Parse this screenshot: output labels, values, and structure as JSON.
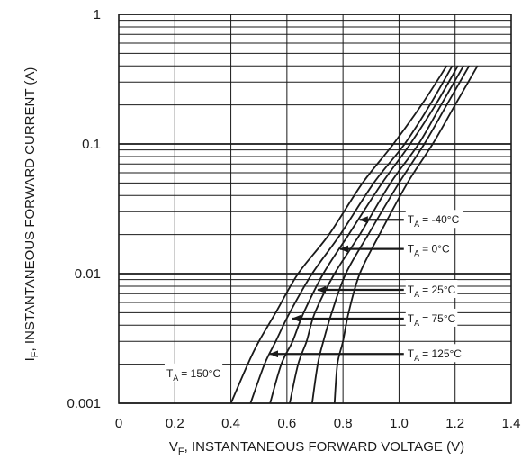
{
  "chart_data": {
    "type": "line",
    "title": "",
    "xlabel": {
      "prefix": "V",
      "sub": "F",
      "suffix": ", INSTANTANEOUS FORWARD VOLTAGE (V)"
    },
    "ylabel": {
      "prefix": "I",
      "sub": "F",
      "suffix": ", INSTANTANEOUS FORWARD CURRENT (A)"
    },
    "xlim": [
      0,
      1.4
    ],
    "ylim": [
      0.001,
      1
    ],
    "yscale": "log",
    "grid": true,
    "x_ticks": [
      0,
      0.2,
      0.4,
      0.6,
      0.8,
      1.0,
      1.2,
      1.4
    ],
    "x_tick_labels": [
      "0",
      "0.2",
      "0.4",
      "0.6",
      "0.8",
      "1.0",
      "1.2",
      "1.4"
    ],
    "y_ticks": [
      0.001,
      0.01,
      0.1,
      1
    ],
    "y_tick_labels": [
      "0.001",
      "0.01",
      "0.1",
      "1"
    ],
    "series": [
      {
        "name": "TA = 150°C",
        "label_text": "= 150°C",
        "points": [
          [
            0.4,
            0.001
          ],
          [
            0.46,
            0.002
          ],
          [
            0.5,
            0.003
          ],
          [
            0.56,
            0.005
          ],
          [
            0.64,
            0.01
          ],
          [
            0.75,
            0.02
          ],
          [
            0.87,
            0.05
          ],
          [
            0.98,
            0.1
          ],
          [
            1.08,
            0.2
          ],
          [
            1.17,
            0.4
          ]
        ]
      },
      {
        "name": "TA = 125°C",
        "label_text": "= 125°C",
        "points": [
          [
            0.47,
            0.001
          ],
          [
            0.52,
            0.002
          ],
          [
            0.56,
            0.003
          ],
          [
            0.61,
            0.005
          ],
          [
            0.69,
            0.01
          ],
          [
            0.79,
            0.02
          ],
          [
            0.91,
            0.05
          ],
          [
            1.02,
            0.1
          ],
          [
            1.11,
            0.2
          ],
          [
            1.19,
            0.4
          ]
        ]
      },
      {
        "name": "TA = 75°C",
        "label_text": "= 75°C",
        "points": [
          [
            0.54,
            0.001
          ],
          [
            0.58,
            0.002
          ],
          [
            0.62,
            0.003
          ],
          [
            0.66,
            0.005
          ],
          [
            0.73,
            0.01
          ],
          [
            0.82,
            0.02
          ],
          [
            0.94,
            0.05
          ],
          [
            1.04,
            0.1
          ],
          [
            1.13,
            0.2
          ],
          [
            1.21,
            0.4
          ]
        ]
      },
      {
        "name": "TA = 25°C",
        "label_text": "= 25°C",
        "points": [
          [
            0.61,
            0.001
          ],
          [
            0.64,
            0.002
          ],
          [
            0.67,
            0.003
          ],
          [
            0.7,
            0.005
          ],
          [
            0.77,
            0.01
          ],
          [
            0.86,
            0.02
          ],
          [
            0.97,
            0.05
          ],
          [
            1.07,
            0.1
          ],
          [
            1.15,
            0.2
          ],
          [
            1.23,
            0.4
          ]
        ]
      },
      {
        "name": "TA = 0°C",
        "label_text": "= 0°C",
        "points": [
          [
            0.69,
            0.001
          ],
          [
            0.71,
            0.002
          ],
          [
            0.73,
            0.003
          ],
          [
            0.76,
            0.005
          ],
          [
            0.81,
            0.01
          ],
          [
            0.89,
            0.02
          ],
          [
            1.0,
            0.05
          ],
          [
            1.09,
            0.1
          ],
          [
            1.17,
            0.2
          ],
          [
            1.25,
            0.4
          ]
        ]
      },
      {
        "name": "TA = -40°C",
        "label_text": "= -40°C",
        "points": [
          [
            0.77,
            0.001
          ],
          [
            0.78,
            0.002
          ],
          [
            0.8,
            0.003
          ],
          [
            0.82,
            0.005
          ],
          [
            0.86,
            0.01
          ],
          [
            0.93,
            0.02
          ],
          [
            1.03,
            0.05
          ],
          [
            1.12,
            0.1
          ],
          [
            1.2,
            0.2
          ],
          [
            1.28,
            0.4
          ]
        ]
      }
    ],
    "annotations": [
      {
        "series": "TA = -40°C",
        "text_prefix": "T",
        "text_sub": "A",
        "text": "= -40°C",
        "arrow_x": 0.86,
        "arrow_y": 0.026,
        "label_x": 1.03,
        "label_y": 0.026
      },
      {
        "series": "TA = 0°C",
        "text_prefix": "T",
        "text_sub": "A",
        "text": "= 0°C",
        "arrow_x": 0.79,
        "arrow_y": 0.0155,
        "label_x": 1.03,
        "label_y": 0.0155
      },
      {
        "series": "TA = 25°C",
        "text_prefix": "T",
        "text_sub": "A",
        "text": "= 25°C",
        "arrow_x": 0.71,
        "arrow_y": 0.0075,
        "label_x": 1.03,
        "label_y": 0.0075
      },
      {
        "series": "TA = 75°C",
        "text_prefix": "T",
        "text_sub": "A",
        "text": "= 75°C",
        "arrow_x": 0.62,
        "arrow_y": 0.0045,
        "label_x": 1.03,
        "label_y": 0.0045
      },
      {
        "series": "TA = 125°C",
        "text_prefix": "T",
        "text_sub": "A",
        "text": "= 125°C",
        "arrow_x": 0.54,
        "arrow_y": 0.0024,
        "label_x": 1.03,
        "label_y": 0.0024
      },
      {
        "series": "TA = 150°C",
        "text_prefix": "T",
        "text_sub": "A",
        "text": "= 150°C",
        "arrow_x": null,
        "arrow_y": null,
        "label_x": 0.17,
        "label_y": 0.0017
      }
    ],
    "colors": {
      "line": "#1a1a1a",
      "grid": "#1a1a1a",
      "background": "#ffffff"
    }
  }
}
